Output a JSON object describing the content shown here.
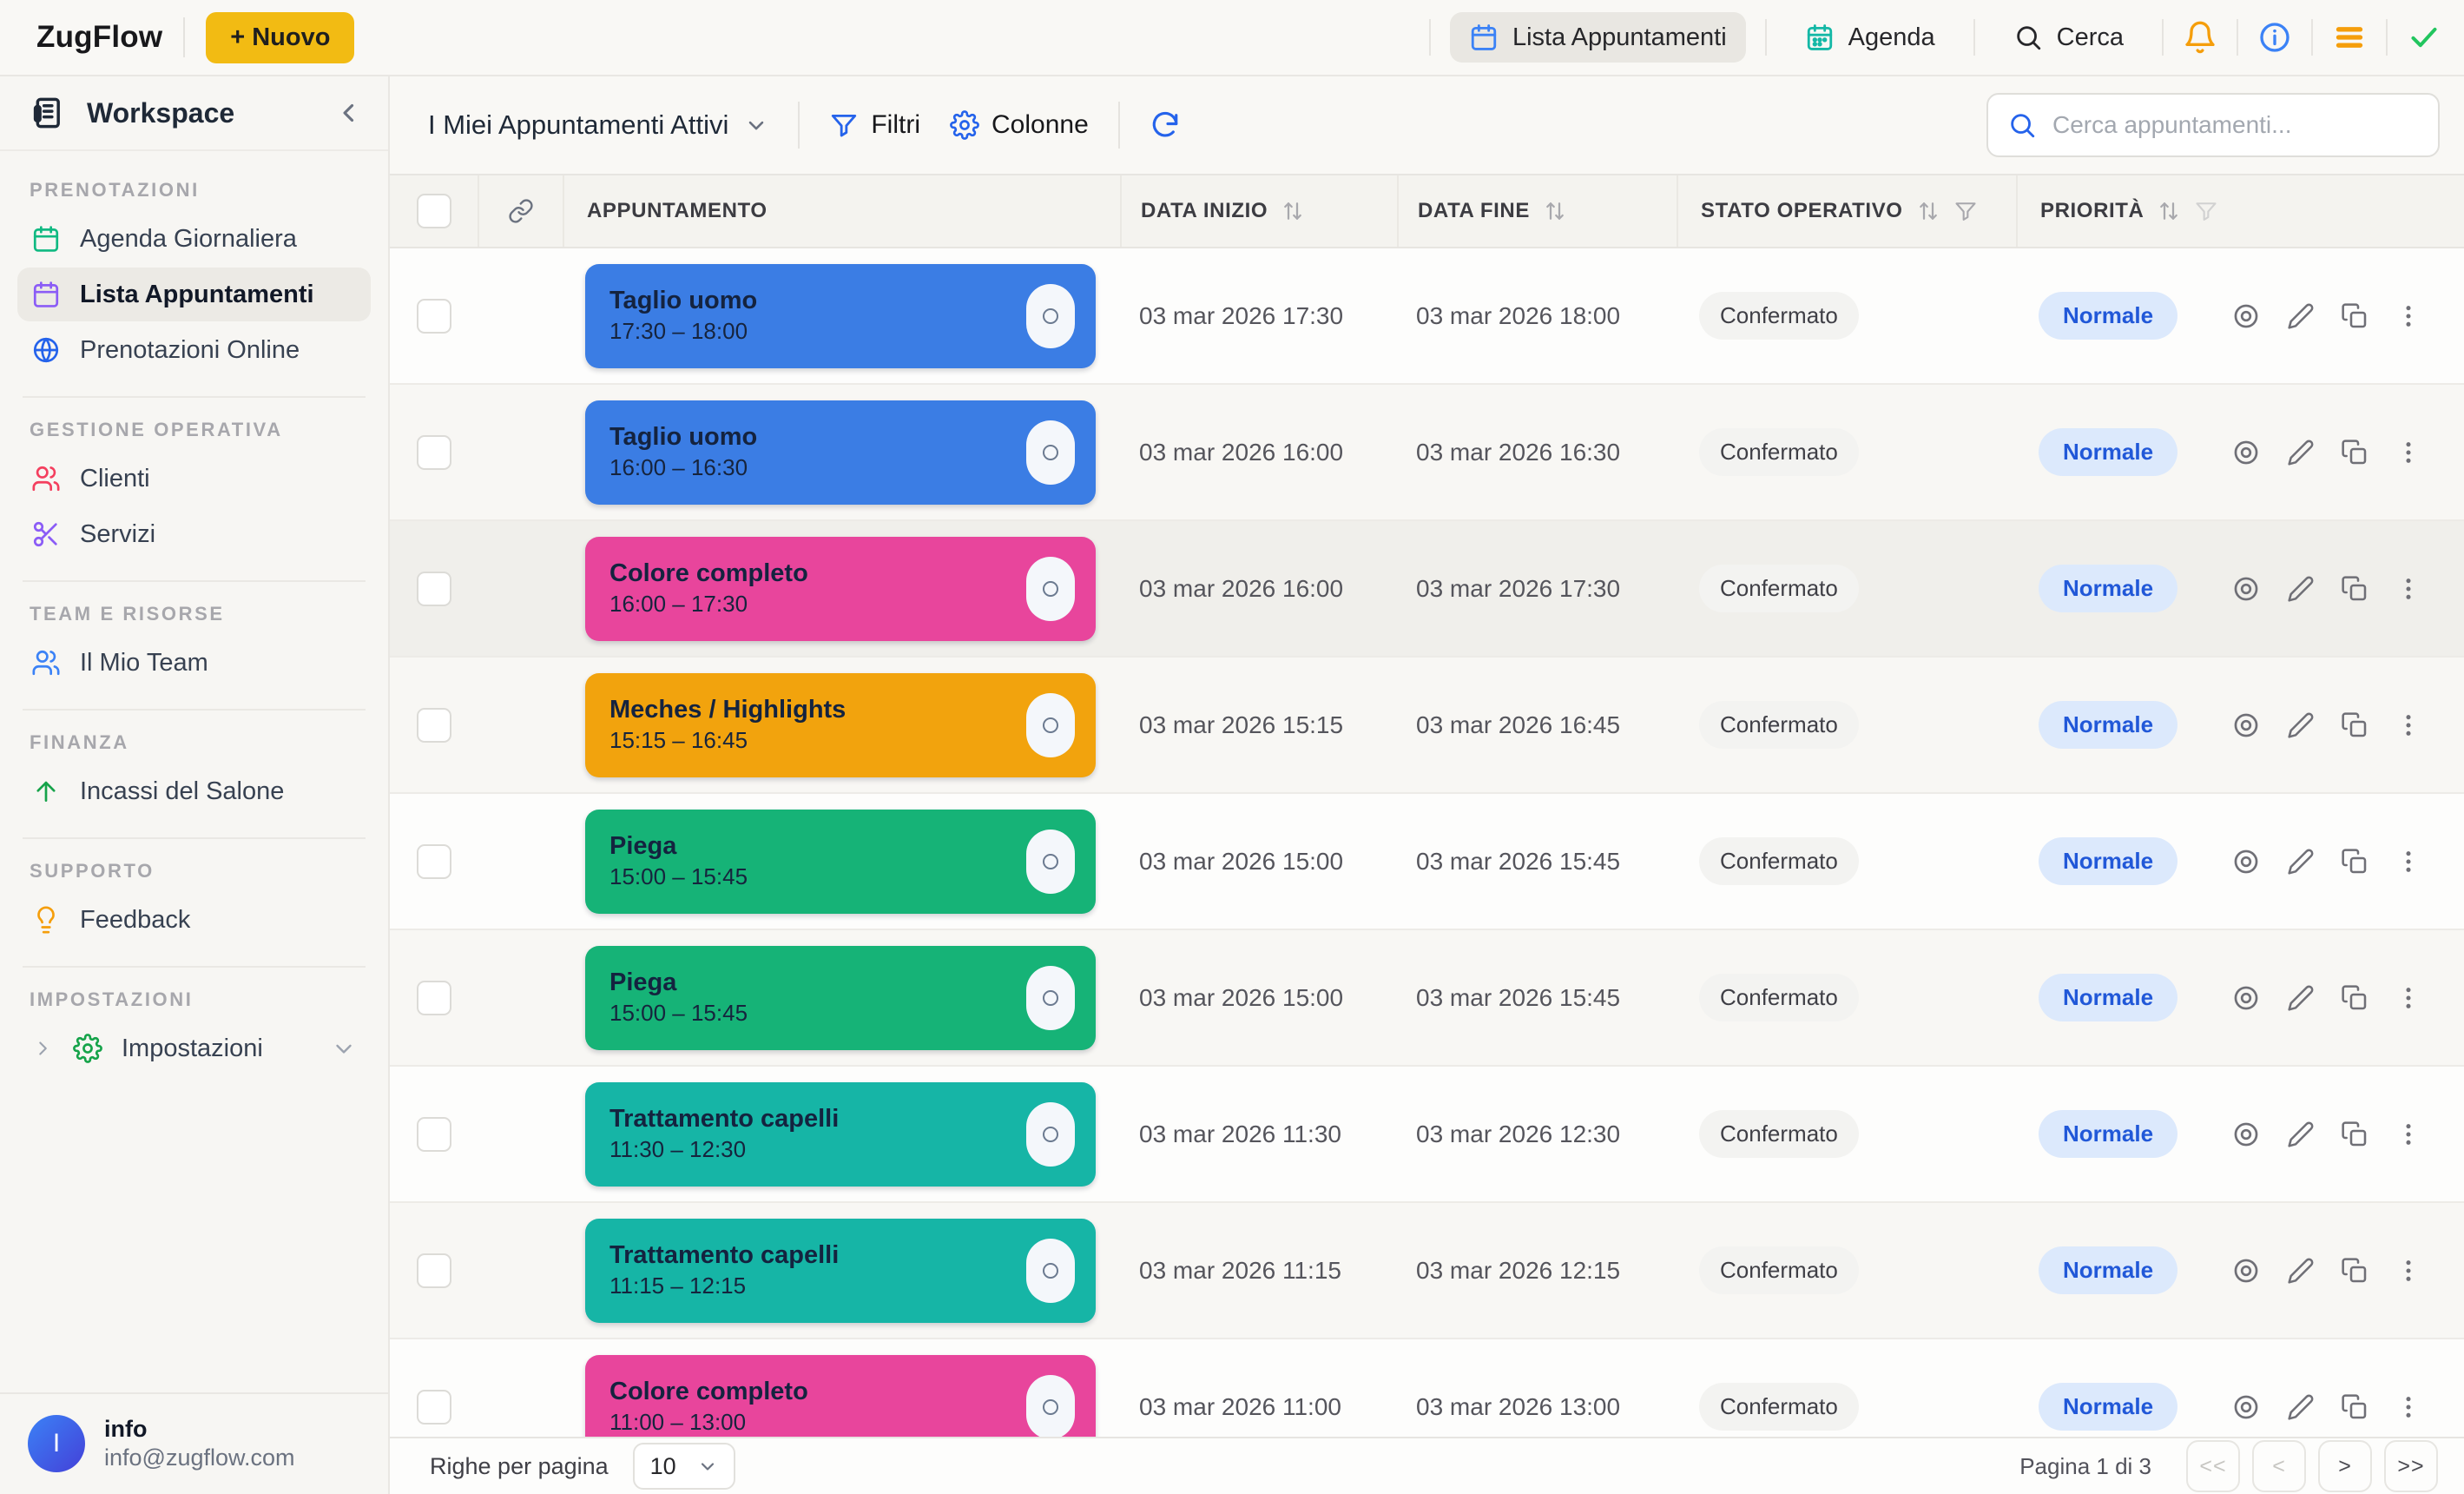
{
  "topbar": {
    "brand": "ZugFlow",
    "new_button_label": "+ Nuovo",
    "nav": [
      {
        "label": "Lista Appuntamenti",
        "icon": "calendar",
        "icon_color": "#3b82f6",
        "active": true
      },
      {
        "label": "Agenda",
        "icon": "calendar",
        "icon_color": "#14b8a6",
        "active": false
      },
      {
        "label": "Cerca",
        "icon": "search",
        "icon_color": "#3f3f46",
        "active": false
      }
    ]
  },
  "sidebar": {
    "title": "Workspace",
    "sections": [
      {
        "label": "PRENOTAZIONI",
        "items": [
          {
            "label": "Agenda Giornaliera",
            "icon": "calendar",
            "icon_color": "#10b981",
            "active": false
          },
          {
            "label": "Lista Appuntamenti",
            "icon": "calendar",
            "icon_color": "#8b5cf6",
            "active": true
          },
          {
            "label": "Prenotazioni Online",
            "icon": "globe",
            "icon_color": "#2563eb",
            "active": false
          }
        ]
      },
      {
        "label": "GESTIONE OPERATIVA",
        "items": [
          {
            "label": "Clienti",
            "icon": "users",
            "icon_color": "#f43f5e",
            "active": false
          },
          {
            "label": "Servizi",
            "icon": "scissors",
            "icon_color": "#8b5cf6",
            "active": false
          }
        ]
      },
      {
        "label": "TEAM E RISORSE",
        "items": [
          {
            "label": "Il Mio Team",
            "icon": "users",
            "icon_color": "#3b82f6",
            "active": false
          }
        ]
      },
      {
        "label": "FINANZA",
        "items": [
          {
            "label": "Incassi del Salone",
            "icon": "arrow-up",
            "icon_color": "#16a34a",
            "active": false
          }
        ]
      },
      {
        "label": "SUPPORTO",
        "items": [
          {
            "label": "Feedback",
            "icon": "lightbulb",
            "icon_color": "#f59e0b",
            "active": false
          }
        ]
      },
      {
        "label": "IMPOSTAZIONI",
        "items": [
          {
            "label": "Impostazioni",
            "icon": "gear",
            "icon_color": "#16a34a",
            "active": false,
            "expandable": true
          }
        ]
      }
    ],
    "user": {
      "initial": "I",
      "name": "info",
      "email": "info@zugflow.com"
    }
  },
  "toolbar": {
    "view_selector_label": "I Miei Appuntamenti Attivi",
    "filters_label": "Filtri",
    "columns_label": "Colonne",
    "search_placeholder": "Cerca appuntamenti..."
  },
  "table": {
    "headers": {
      "appointment": "APPUNTAMENTO",
      "start": "DATA INIZIO",
      "end": "DATA FINE",
      "status": "STATO OPERATIVO",
      "priority": "PRIORITÀ"
    },
    "rows": [
      {
        "service": "Taglio uomo",
        "time": "17:30 – 18:00",
        "color": "#3b7de4",
        "start": "03 mar 2026 17:30",
        "end": "03 mar 2026 18:00",
        "status": "Confermato",
        "priority": "Normale",
        "highlighted": false
      },
      {
        "service": "Taglio uomo",
        "time": "16:00 – 16:30",
        "color": "#3b7de4",
        "start": "03 mar 2026 16:00",
        "end": "03 mar 2026 16:30",
        "status": "Confermato",
        "priority": "Normale",
        "highlighted": false
      },
      {
        "service": "Colore completo",
        "time": "16:00 – 17:30",
        "color": "#e8459c",
        "start": "03 mar 2026 16:00",
        "end": "03 mar 2026 17:30",
        "status": "Confermato",
        "priority": "Normale",
        "highlighted": true
      },
      {
        "service": "Meches / Highlights",
        "time": "15:15 – 16:45",
        "color": "#f2a30d",
        "start": "03 mar 2026 15:15",
        "end": "03 mar 2026 16:45",
        "status": "Confermato",
        "priority": "Normale",
        "highlighted": false
      },
      {
        "service": "Piega",
        "time": "15:00 – 15:45",
        "color": "#16b377",
        "start": "03 mar 2026 15:00",
        "end": "03 mar 2026 15:45",
        "status": "Confermato",
        "priority": "Normale",
        "highlighted": false
      },
      {
        "service": "Piega",
        "time": "15:00 – 15:45",
        "color": "#16b377",
        "start": "03 mar 2026 15:00",
        "end": "03 mar 2026 15:45",
        "status": "Confermato",
        "priority": "Normale",
        "highlighted": false
      },
      {
        "service": "Trattamento capelli",
        "time": "11:30 – 12:30",
        "color": "#16b5a6",
        "start": "03 mar 2026 11:30",
        "end": "03 mar 2026 12:30",
        "status": "Confermato",
        "priority": "Normale",
        "highlighted": false
      },
      {
        "service": "Trattamento capelli",
        "time": "11:15 – 12:15",
        "color": "#16b5a6",
        "start": "03 mar 2026 11:15",
        "end": "03 mar 2026 12:15",
        "status": "Confermato",
        "priority": "Normale",
        "highlighted": false
      },
      {
        "service": "Colore completo",
        "time": "11:00 – 13:00",
        "color": "#e8459c",
        "start": "03 mar 2026 11:00",
        "end": "03 mar 2026 13:00",
        "status": "Confermato",
        "priority": "Normale",
        "highlighted": false
      }
    ]
  },
  "footer": {
    "rows_per_page_label": "Righe per pagina",
    "rows_per_page_value": "10",
    "page_info": "Pagina 1 di 3",
    "pagination": [
      {
        "label": "<<",
        "disabled": true
      },
      {
        "label": "<",
        "disabled": true
      },
      {
        "label": ">",
        "disabled": false
      },
      {
        "label": ">>",
        "disabled": false
      }
    ]
  }
}
